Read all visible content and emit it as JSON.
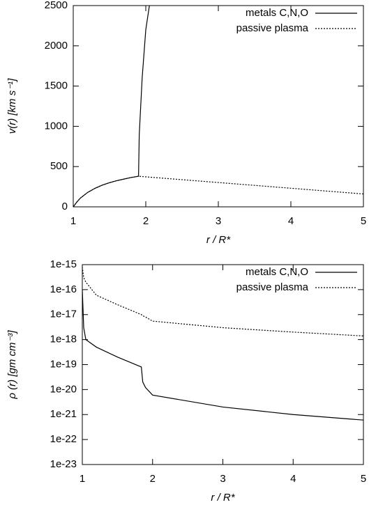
{
  "chart_data": [
    {
      "type": "line",
      "x_label": "r / R*",
      "y_label": "v(r) [km s⁻¹]",
      "x": [
        1,
        1.05,
        1.1,
        1.2,
        1.3,
        1.4,
        1.5,
        1.6,
        1.7,
        1.8,
        1.9,
        1.91,
        1.95,
        2,
        2.05,
        3,
        4,
        5
      ],
      "series": [
        {
          "name": "metals C,N,O",
          "color": "#000000",
          "dash": "solid",
          "values": [
            0,
            60,
            110,
            180,
            230,
            270,
            300,
            325,
            345,
            365,
            380,
            900,
            1600,
            2200,
            2500,
            null,
            null,
            null
          ]
        },
        {
          "name": "passive plasma",
          "color": "#000000",
          "dash": "dotted",
          "values": [
            0,
            60,
            110,
            180,
            230,
            270,
            300,
            325,
            345,
            365,
            380,
            379,
            376,
            373,
            369,
            302,
            231,
            160
          ]
        }
      ],
      "xlim": [
        1,
        5
      ],
      "xticks": [
        1,
        2,
        3,
        4,
        5
      ],
      "ylim": [
        0,
        2500
      ],
      "yticks": [
        0,
        500,
        1000,
        1500,
        2000,
        2500
      ],
      "legend": "upper right"
    },
    {
      "type": "line",
      "x_label": "r / R*",
      "y_label": "ρ (r) [gm cm⁻³]",
      "x": [
        1,
        1.02,
        1.05,
        1.2,
        1.5,
        1.84,
        1.86,
        1.9,
        2,
        3,
        4,
        5
      ],
      "series": [
        {
          "name": "metals C,N,O",
          "color": "#000000",
          "dash": "solid",
          "values": [
            1e-16,
            3e-18,
            1e-18,
            5e-19,
            2e-19,
            8e-20,
            2e-20,
            1.2e-20,
            6e-21,
            2e-21,
            1e-21,
            6e-22
          ]
        },
        {
          "name": "passive plasma",
          "color": "#000000",
          "dash": "dotted",
          "values": [
            8e-16,
            3e-16,
            2e-16,
            6e-17,
            2.5e-17,
            1e-17,
            9e-18,
            8e-18,
            5.5e-18,
            3e-18,
            2e-18,
            1.4e-18
          ]
        }
      ],
      "xlim": [
        1,
        5
      ],
      "xticks": [
        1,
        2,
        3,
        4,
        5
      ],
      "ylim": [
        1e-23,
        1e-15
      ],
      "ylog": true,
      "yticks": [
        {
          "value": 1e-23,
          "label": "1e-23"
        },
        {
          "value": 1e-22,
          "label": "1e-22"
        },
        {
          "value": 1e-21,
          "label": "1e-21"
        },
        {
          "value": 1e-20,
          "label": "1e-20"
        },
        {
          "value": 1e-19,
          "label": "1e-19"
        },
        {
          "value": 1e-18,
          "label": "1e-18"
        },
        {
          "value": 1e-17,
          "label": "1e-17"
        },
        {
          "value": 1e-16,
          "label": "1e-16"
        },
        {
          "value": 1e-15,
          "label": "1e-15"
        }
      ],
      "legend": "upper right"
    }
  ]
}
